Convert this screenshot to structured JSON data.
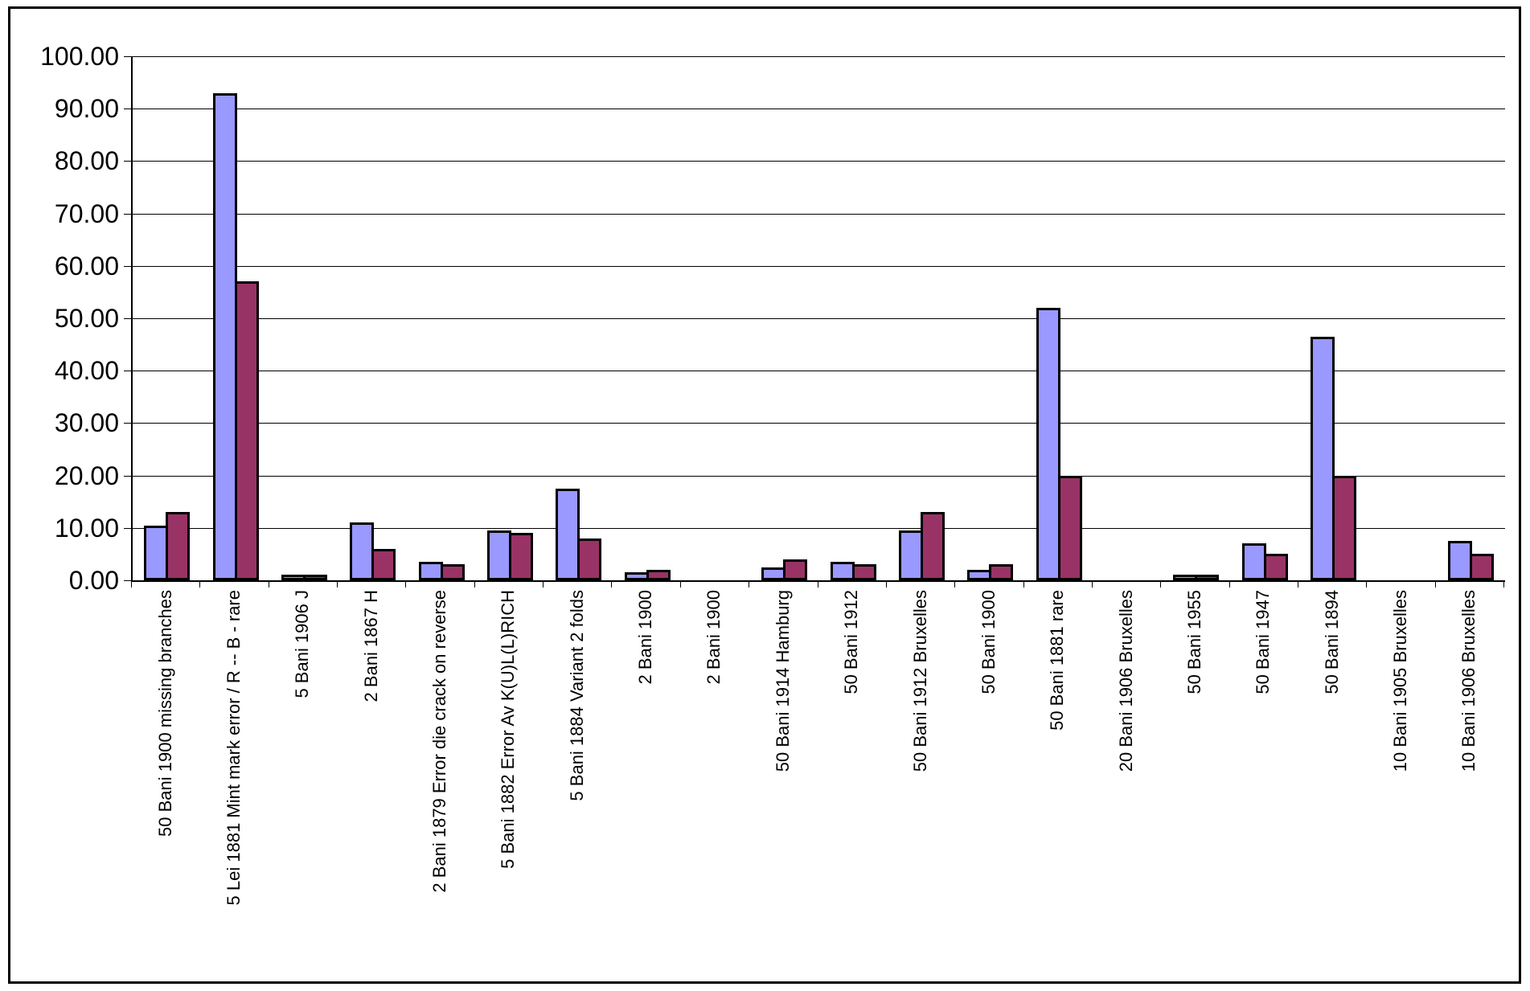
{
  "chart_data": {
    "type": "bar",
    "title": "",
    "legend": "none",
    "grid": true,
    "ylim": [
      0,
      100
    ],
    "ytick_step": 10,
    "ytick_labels": [
      "0.00",
      "10.00",
      "20.00",
      "30.00",
      "40.00",
      "50.00",
      "60.00",
      "70.00",
      "80.00",
      "90.00",
      "100.00"
    ],
    "categories": [
      "50 Bani 1900 missing branches",
      "5 Lei 1881 Mint mark error / R -- B - rare",
      "5 Bani 1906 J",
      "2 Bani 1867 H",
      "2 Bani 1879 Error die crack on reverse",
      "5 Bani 1882 Error Av K(U)L(L)RICH",
      "5 Bani 1884 Variant 2 folds",
      "2 Bani 1900",
      "2 Bani 1900",
      "50 Bani 1914 Hamburg",
      "50 Bani 1912",
      "50 Bani 1912 Bruxelles",
      "50 Bani 1900",
      "50 Bani 1881 rare",
      "20 Bani 1906 Bruxelles",
      "50 Bani 1955",
      "50 Bani 1947",
      "50 Bani 1894",
      "10 Bani 1905 Bruxelles",
      "10 Bani 1906 Bruxelles"
    ],
    "series": [
      {
        "name": "series-1",
        "color": "#9999FF",
        "values": [
          10.5,
          93,
          1,
          11,
          3.5,
          9.5,
          17.5,
          1.5,
          0,
          2.5,
          3.5,
          9.5,
          2,
          52,
          0,
          1,
          7,
          46.5,
          0,
          7.5
        ]
      },
      {
        "name": "series-2",
        "color": "#993366",
        "values": [
          13,
          57,
          1,
          6,
          3,
          9,
          8,
          2,
          0,
          4,
          3,
          13,
          3,
          20,
          0,
          1,
          5,
          20,
          0,
          5
        ]
      }
    ],
    "colors": {
      "axis": "#000000",
      "gridline": "#000000",
      "bar_border": "#000000",
      "background": "#FFFFFF",
      "frame_border": "#000000"
    }
  }
}
